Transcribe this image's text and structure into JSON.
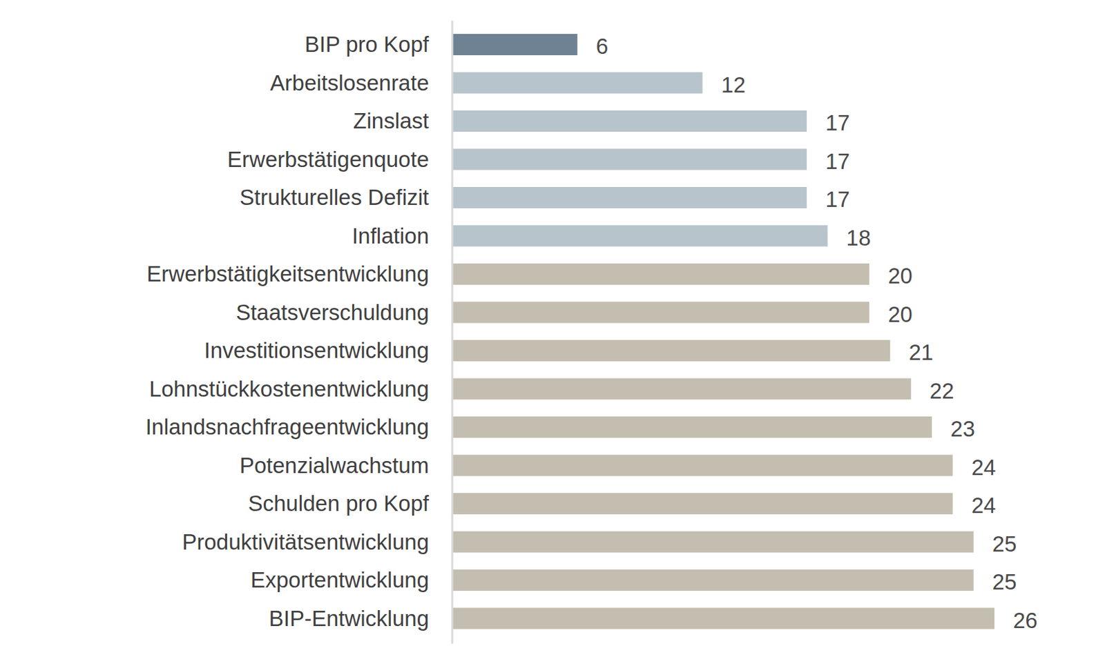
{
  "chart_data": {
    "type": "bar",
    "orientation": "horizontal",
    "categories": [
      "BIP pro Kopf",
      "Arbeitslosenrate",
      "Zinslast",
      "Erwerbstätigenquote",
      "Strukturelles Defizit",
      "Inflation",
      "Erwerbstätigkeitsentwicklung",
      "Staatsverschuldung",
      "Investitionsentwicklung",
      "Lohnstückkostenentwicklung",
      "Inlandsnachfrageentwicklung",
      "Potenzialwachstum",
      "Schulden pro Kopf",
      "Produktivitätsentwicklung",
      "Exportentwicklung",
      "BIP-Entwicklung"
    ],
    "values": [
      6,
      12,
      17,
      17,
      17,
      18,
      20,
      20,
      21,
      22,
      23,
      24,
      24,
      25,
      25,
      26
    ],
    "colors": [
      "#6f8294",
      "#b8c4cc",
      "#b8c4cc",
      "#b8c4cc",
      "#b8c4cc",
      "#b8c4cc",
      "#c4beb1",
      "#c4beb1",
      "#c4beb1",
      "#c4beb1",
      "#c4beb1",
      "#c4beb1",
      "#c4beb1",
      "#c4beb1",
      "#c4beb1",
      "#c4beb1"
    ],
    "xlim": [
      0,
      26
    ],
    "grid": false,
    "data_labels": true,
    "tick_labels": "y"
  }
}
